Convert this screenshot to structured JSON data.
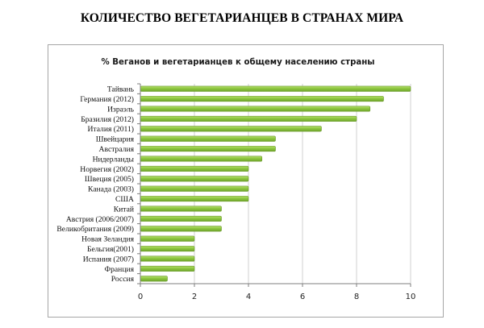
{
  "page_title": "КОЛИЧЕСТВО ВЕГЕТАРИАНЦЕВ В СТРАНАХ МИРА",
  "chart_data": {
    "type": "bar",
    "orientation": "horizontal",
    "title": "% Веганов и вегетарианцев к общему населению страны",
    "categories": [
      "Тайвань",
      "Германия (2012)",
      "Израэль",
      "Бразилия (2012)",
      "Италия (2011)",
      "Швейцария",
      "Австралия",
      "Нидерланды",
      "Норвегия (2002)",
      "Швеция (2005)",
      "Канада (2003)",
      "США",
      "Китай",
      "Австрия (2006/2007)",
      "Великобритания (2009)",
      "Новая Зеландия",
      "Бельгия(2001)",
      "Испания (2007)",
      "Франция",
      "Россия"
    ],
    "values": [
      10,
      9,
      8.5,
      8,
      6.7,
      5,
      5,
      4.5,
      4,
      4,
      4,
      4,
      3,
      3,
      3,
      2,
      2,
      2,
      2,
      1
    ],
    "xlim": [
      0,
      10
    ],
    "xticks": [
      0,
      2,
      4,
      6,
      8,
      10
    ],
    "grid": "vertical",
    "legend": "none",
    "colors": {
      "bar_fill": "#8dc63f",
      "bar_stroke": "#6b9a2c",
      "gridline": "#d0d0d0",
      "axis": "#7f7f7f"
    }
  }
}
